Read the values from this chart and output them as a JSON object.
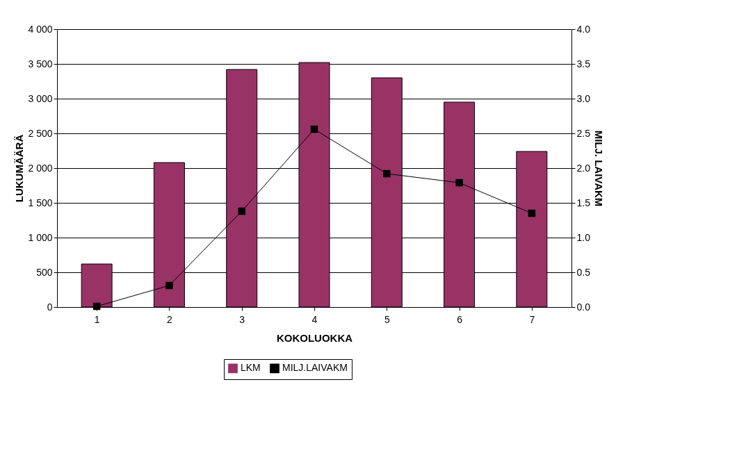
{
  "chart_data": {
    "type": "bar",
    "xlabel": "KOKOLUOKKA",
    "ylabel": "LUKUMÄÄRÄ",
    "y2label": "MILJ. LAIVAKM",
    "categories": [
      "1",
      "2",
      "3",
      "4",
      "5",
      "6",
      "7"
    ],
    "series": [
      {
        "name": "LKM",
        "type": "bar",
        "color": "#993366",
        "values": [
          620,
          2080,
          3420,
          3520,
          3300,
          2950,
          2240
        ]
      },
      {
        "name": "MILJ.LAIVAKM",
        "type": "line",
        "axis": "y2",
        "color": "#000000",
        "marker": "square",
        "values": [
          0.01,
          0.31,
          1.38,
          2.56,
          1.92,
          1.79,
          1.35
        ]
      }
    ],
    "ylim": [
      0,
      4000
    ],
    "yticks": [
      {
        "value": 0,
        "label": "0"
      },
      {
        "value": 500,
        "label": "500"
      },
      {
        "value": 1000,
        "label": "1 000"
      },
      {
        "value": 1500,
        "label": "1 500"
      },
      {
        "value": 2000,
        "label": "2 000"
      },
      {
        "value": 2500,
        "label": "2 500"
      },
      {
        "value": 3000,
        "label": "3 000"
      },
      {
        "value": 3500,
        "label": "3 500"
      },
      {
        "value": 4000,
        "label": "4 000"
      }
    ],
    "y2lim": [
      0,
      4
    ],
    "y2ticks": [
      {
        "value": 0,
        "label": "0.0"
      },
      {
        "value": 0.5,
        "label": "0.5"
      },
      {
        "value": 1,
        "label": "1.0"
      },
      {
        "value": 1.5,
        "label": "1.5"
      },
      {
        "value": 2,
        "label": "2.0"
      },
      {
        "value": 2.5,
        "label": "2.5"
      },
      {
        "value": 3,
        "label": "3.0"
      },
      {
        "value": 3.5,
        "label": "3.5"
      },
      {
        "value": 4,
        "label": "4.0"
      }
    ],
    "grid": "y",
    "legend": "bottom"
  }
}
